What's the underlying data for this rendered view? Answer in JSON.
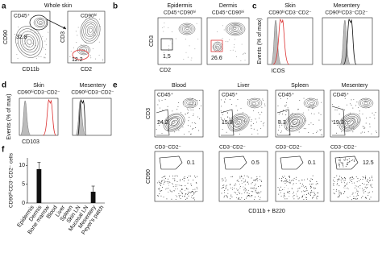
{
  "panels": {
    "a": {
      "label": "a",
      "title": "Whole skin",
      "gate1": "CD45⁺",
      "gate2": "CD90ʰⁱ",
      "y1": "CD90",
      "x1": "CD11b",
      "y2": "CD3",
      "x2": "CD2",
      "pct1": 32.8,
      "pct2": 12.2
    },
    "b": {
      "label": "b",
      "title1": "Epidermis",
      "title2": "Dermis",
      "gate1": "CD45⁺CD90ʰⁱ",
      "gate2": "CD45⁺CD90ʰⁱ",
      "ylabel": "CD3",
      "xlabel": "CD2",
      "pct1": 1.5,
      "pct2": 26.6
    },
    "c": {
      "label": "c",
      "title1": "Skin",
      "title2": "Mesentery",
      "gate1": "CD90ʰⁱCD3⁻CD2⁻",
      "gate2": "CD90ʰⁱCD3⁻CD2⁻",
      "ylabel": "Events (% of max)",
      "xlabel": "ICOS"
    },
    "d": {
      "label": "d",
      "title1": "Skin",
      "title2": "Mesentery",
      "gate1": "CD90ʰⁱCD3⁻CD2⁻",
      "gate2": "CD90ʰⁱCD3⁻CD2⁻",
      "ylabel": "Events (% of max)",
      "xlabel": "CD103"
    },
    "e": {
      "label": "e",
      "titles": [
        "Blood",
        "Liver",
        "Spleen",
        "Mesentery"
      ],
      "gates_top": [
        "CD45⁺",
        "CD45⁺",
        "CD45⁺",
        "CD45⁺"
      ],
      "pcts_top": [
        24.2,
        15.8,
        8.3,
        19.3
      ],
      "ylabel_top": "CD3",
      "gates_bottom": [
        "CD3⁻CD2⁻",
        "CD3⁻CD2⁻",
        "CD3⁻CD2⁻",
        "CD3⁻CD2⁻"
      ],
      "pcts_bottom": [
        0.1,
        0.5,
        0.1,
        12.5
      ],
      "ylabel_bottom": "CD90",
      "xlabel": "CD11b + B220"
    },
    "f": {
      "label": "f"
    }
  },
  "chart_data": {
    "type": "bar",
    "ylabel": "CD90ʰⁱCD3⁻CD2⁻ cells",
    "categories": [
      "Epidermis",
      "Dermis",
      "Bone marrow",
      "Blood",
      "Liver",
      "Spleen",
      "Skin LN",
      "Mucosal LN",
      "Mesentery",
      "Peyer's patch"
    ],
    "values": [
      0,
      9,
      0,
      0,
      0,
      0,
      0,
      0,
      3,
      0
    ],
    "errors": [
      0,
      1.8,
      0,
      0,
      0,
      0,
      0,
      0,
      1.5,
      0
    ],
    "color": "#111111",
    "ylim": [
      0,
      12
    ],
    "yticks": [
      0,
      5,
      10
    ]
  }
}
